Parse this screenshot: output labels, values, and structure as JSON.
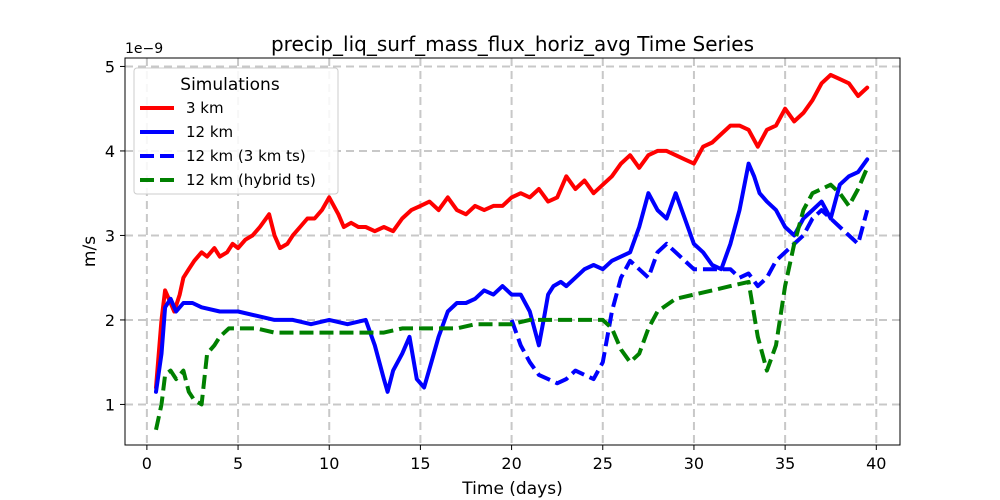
{
  "chart_data": {
    "type": "line",
    "title": "precip_liq_surf_mass_flux_horiz_avg Time Series",
    "xlabel": "Time (days)",
    "ylabel": "m/s",
    "y_offset_label": "1e−9",
    "xlim": [
      -1.2,
      41.3
    ],
    "ylim": [
      0.52,
      5.1
    ],
    "xticks": [
      0,
      5,
      10,
      15,
      20,
      25,
      30,
      35,
      40
    ],
    "yticks": [
      1,
      2,
      3,
      4,
      5
    ],
    "grid": true,
    "legend": {
      "title": "Simulations",
      "placement": "top-left"
    },
    "series": [
      {
        "name": "3 km",
        "color": "#ff0000",
        "dash": "solid",
        "x": [
          0.5,
          0.8,
          1.0,
          1.2,
          1.5,
          1.8,
          2.0,
          2.3,
          2.6,
          3.0,
          3.3,
          3.7,
          4.0,
          4.4,
          4.7,
          5.0,
          5.4,
          5.8,
          6.2,
          6.7,
          7.0,
          7.3,
          7.7,
          8.0,
          8.4,
          8.8,
          9.2,
          9.6,
          10.0,
          10.5,
          10.8,
          11.2,
          11.6,
          12.0,
          12.5,
          13.0,
          13.5,
          14.0,
          14.5,
          15.0,
          15.5,
          16.0,
          16.5,
          17.0,
          17.5,
          18.0,
          18.5,
          19.0,
          19.5,
          20.0,
          20.5,
          21.0,
          21.5,
          22.0,
          22.5,
          23.0,
          23.5,
          24.0,
          24.5,
          25.0,
          25.5,
          26.0,
          26.5,
          27.0,
          27.5,
          28.0,
          28.5,
          29.0,
          29.5,
          30.0,
          30.5,
          31.0,
          31.5,
          32.0,
          32.5,
          33.0,
          33.5,
          34.0,
          34.5,
          35.0,
          35.5,
          36.0,
          36.5,
          37.0,
          37.5,
          38.0,
          38.5,
          39.0,
          39.5
        ],
        "values": [
          1.2,
          2.0,
          2.35,
          2.25,
          2.1,
          2.3,
          2.5,
          2.6,
          2.7,
          2.8,
          2.75,
          2.85,
          2.75,
          2.8,
          2.9,
          2.85,
          2.95,
          3.0,
          3.1,
          3.25,
          3.0,
          2.85,
          2.9,
          3.0,
          3.1,
          3.2,
          3.2,
          3.3,
          3.45,
          3.25,
          3.1,
          3.15,
          3.1,
          3.1,
          3.05,
          3.1,
          3.05,
          3.2,
          3.3,
          3.35,
          3.4,
          3.3,
          3.45,
          3.3,
          3.25,
          3.35,
          3.3,
          3.35,
          3.35,
          3.45,
          3.5,
          3.45,
          3.55,
          3.4,
          3.45,
          3.7,
          3.55,
          3.65,
          3.5,
          3.6,
          3.7,
          3.85,
          3.95,
          3.8,
          3.95,
          4.0,
          4.0,
          3.95,
          3.9,
          3.85,
          4.05,
          4.1,
          4.2,
          4.3,
          4.3,
          4.25,
          4.05,
          4.25,
          4.3,
          4.5,
          4.35,
          4.45,
          4.6,
          4.8,
          4.9,
          4.85,
          4.8,
          4.65,
          4.75
        ]
      },
      {
        "name": "12 km",
        "color": "#0000ff",
        "dash": "solid",
        "x": [
          0.5,
          0.8,
          1.0,
          1.3,
          1.6,
          2.0,
          2.5,
          3.0,
          4.0,
          5.0,
          6.0,
          7.0,
          8.0,
          9.0,
          10.0,
          11.0,
          12.0,
          12.5,
          13.0,
          13.2,
          13.5,
          14.0,
          14.4,
          14.8,
          15.2,
          15.6,
          16.0,
          16.5,
          17.0,
          17.5,
          18.0,
          18.5,
          19.0,
          19.5,
          20.0,
          20.5,
          21.0,
          21.5,
          21.8,
          22.0,
          22.3,
          22.7,
          23.0,
          23.5,
          24.0,
          24.5,
          25.0,
          25.5,
          26.0,
          26.5,
          27.0,
          27.5,
          28.0,
          28.5,
          29.0,
          29.5,
          30.0,
          30.5,
          31.0,
          31.5,
          32.0,
          32.5,
          33.0,
          33.3,
          33.6,
          34.0,
          34.5,
          35.0,
          35.5,
          36.0,
          36.5,
          37.0,
          37.5,
          38.0,
          38.5,
          39.0,
          39.5
        ],
        "values": [
          1.15,
          1.6,
          2.15,
          2.25,
          2.1,
          2.2,
          2.2,
          2.15,
          2.1,
          2.1,
          2.05,
          2.0,
          2.0,
          1.95,
          2.0,
          1.95,
          2.0,
          1.7,
          1.3,
          1.15,
          1.4,
          1.6,
          1.8,
          1.3,
          1.2,
          1.5,
          1.8,
          2.1,
          2.2,
          2.2,
          2.25,
          2.35,
          2.3,
          2.4,
          2.3,
          2.3,
          2.1,
          1.7,
          2.05,
          2.3,
          2.4,
          2.45,
          2.4,
          2.5,
          2.6,
          2.65,
          2.6,
          2.7,
          2.75,
          2.8,
          3.1,
          3.5,
          3.3,
          3.2,
          3.5,
          3.2,
          2.9,
          2.8,
          2.65,
          2.6,
          2.9,
          3.3,
          3.85,
          3.7,
          3.5,
          3.4,
          3.3,
          3.1,
          3.0,
          3.2,
          3.3,
          3.4,
          3.2,
          3.6,
          3.7,
          3.75,
          3.9
        ]
      },
      {
        "name": "12 km (3 km ts)",
        "color": "#0000ff",
        "dash": "dashed",
        "x": [
          20.0,
          20.5,
          21.0,
          21.5,
          22.0,
          22.5,
          23.0,
          23.5,
          24.0,
          24.5,
          25.0,
          25.5,
          26.0,
          26.5,
          27.0,
          27.5,
          28.0,
          28.5,
          29.0,
          29.5,
          30.0,
          30.5,
          31.0,
          31.5,
          32.0,
          32.5,
          33.0,
          33.5,
          34.0,
          34.5,
          35.0,
          35.5,
          36.0,
          36.5,
          37.0,
          37.5,
          38.0,
          38.5,
          39.0,
          39.5
        ],
        "values": [
          2.0,
          1.7,
          1.5,
          1.35,
          1.3,
          1.25,
          1.3,
          1.4,
          1.35,
          1.3,
          1.5,
          2.1,
          2.5,
          2.7,
          2.6,
          2.5,
          2.8,
          2.9,
          2.8,
          2.7,
          2.6,
          2.6,
          2.6,
          2.6,
          2.6,
          2.5,
          2.55,
          2.4,
          2.5,
          2.7,
          2.8,
          2.9,
          3.0,
          3.2,
          3.3,
          3.2,
          3.1,
          3.0,
          2.9,
          3.3
        ]
      },
      {
        "name": "12 km (hybrid ts)",
        "color": "#008000",
        "dash": "dashed",
        "x": [
          0.5,
          0.8,
          1.0,
          1.3,
          1.6,
          2.0,
          2.3,
          2.6,
          3.0,
          3.3,
          3.7,
          4.0,
          4.5,
          5.0,
          6.0,
          7.0,
          8.0,
          9.0,
          10.0,
          11.0,
          12.0,
          13.0,
          14.0,
          15.0,
          16.0,
          17.0,
          18.0,
          19.0,
          20.0,
          21.0,
          22.0,
          23.0,
          24.0,
          25.0,
          25.5,
          26.0,
          26.5,
          27.0,
          27.5,
          28.0,
          29.0,
          30.0,
          31.0,
          32.0,
          33.0,
          33.5,
          34.0,
          34.5,
          35.0,
          35.5,
          36.0,
          36.5,
          37.0,
          37.5,
          38.0,
          38.5,
          39.0,
          39.5
        ],
        "values": [
          0.7,
          1.0,
          1.35,
          1.4,
          1.3,
          1.4,
          1.15,
          1.05,
          1.0,
          1.6,
          1.7,
          1.8,
          1.9,
          1.9,
          1.9,
          1.85,
          1.85,
          1.85,
          1.85,
          1.85,
          1.85,
          1.85,
          1.9,
          1.9,
          1.9,
          1.9,
          1.95,
          1.95,
          1.95,
          2.0,
          2.0,
          2.0,
          2.0,
          2.0,
          1.9,
          1.65,
          1.5,
          1.6,
          1.9,
          2.1,
          2.25,
          2.3,
          2.35,
          2.4,
          2.45,
          1.8,
          1.4,
          1.7,
          2.4,
          2.9,
          3.3,
          3.5,
          3.55,
          3.6,
          3.5,
          3.35,
          3.55,
          3.8
        ]
      }
    ]
  }
}
